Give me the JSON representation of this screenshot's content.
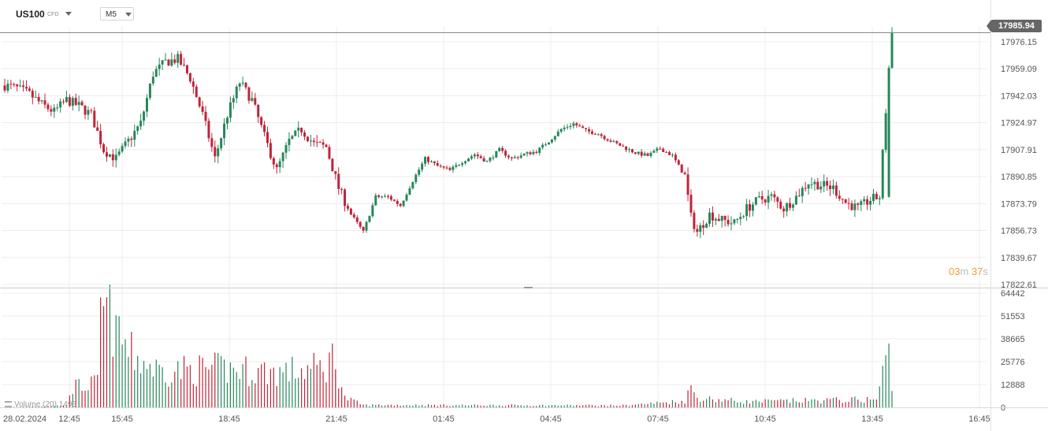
{
  "toolbar": {
    "symbol": "US100",
    "symbol_type": "CFD",
    "timeframe": "M5"
  },
  "current_price": "17985.94",
  "countdown": {
    "minutes": "03",
    "minutes_unit": "m",
    "seconds": "37",
    "seconds_unit": "s"
  },
  "volume_indicator_label": "Volume (20) 1493",
  "colors": {
    "up": "#26875a",
    "down": "#c0243a",
    "grid": "#ececec",
    "axis_text": "#555555",
    "price_tag": "#666666",
    "countdown": "#f0a030"
  },
  "chart_data": [
    {
      "type": "candlestick",
      "title": "",
      "ylim": [
        17812,
        17990
      ],
      "y_tick_labels": [
        "17976.15",
        "17959.09",
        "17942.03",
        "17924.97",
        "17907.91",
        "17890.85",
        "17873.79",
        "17856.73",
        "17839.67",
        "17822.61"
      ],
      "x_tick_labels": [
        "28.02.2024",
        "12:45",
        "15:45",
        "18:45",
        "21:45",
        "01:45",
        "04:45",
        "07:45",
        "10:45",
        "13:45",
        "16:45"
      ],
      "grid": true,
      "close_series": [
        {
          "i": 0,
          "y": 17950
        },
        {
          "i": 4,
          "y": 17948
        },
        {
          "i": 8,
          "y": 17944
        },
        {
          "i": 12,
          "y": 17937
        },
        {
          "i": 16,
          "y": 17932
        },
        {
          "i": 20,
          "y": 17940
        },
        {
          "i": 24,
          "y": 17936
        },
        {
          "i": 28,
          "y": 17930
        },
        {
          "i": 32,
          "y": 17906
        },
        {
          "i": 36,
          "y": 17900
        },
        {
          "i": 40,
          "y": 17912
        },
        {
          "i": 44,
          "y": 17924
        },
        {
          "i": 48,
          "y": 17958
        },
        {
          "i": 52,
          "y": 17966
        },
        {
          "i": 56,
          "y": 17968
        },
        {
          "i": 60,
          "y": 17955
        },
        {
          "i": 64,
          "y": 17930
        },
        {
          "i": 68,
          "y": 17900
        },
        {
          "i": 72,
          "y": 17930
        },
        {
          "i": 76,
          "y": 17952
        },
        {
          "i": 80,
          "y": 17940
        },
        {
          "i": 84,
          "y": 17915
        },
        {
          "i": 88,
          "y": 17892
        },
        {
          "i": 92,
          "y": 17912
        },
        {
          "i": 96,
          "y": 17920
        },
        {
          "i": 100,
          "y": 17910
        },
        {
          "i": 104,
          "y": 17908
        },
        {
          "i": 108,
          "y": 17880
        },
        {
          "i": 112,
          "y": 17862
        },
        {
          "i": 116,
          "y": 17850
        },
        {
          "i": 120,
          "y": 17874
        },
        {
          "i": 124,
          "y": 17874
        },
        {
          "i": 128,
          "y": 17868
        },
        {
          "i": 132,
          "y": 17885
        },
        {
          "i": 136,
          "y": 17900
        },
        {
          "i": 140,
          "y": 17895
        },
        {
          "i": 144,
          "y": 17892
        },
        {
          "i": 148,
          "y": 17898
        },
        {
          "i": 152,
          "y": 17903
        },
        {
          "i": 156,
          "y": 17898
        },
        {
          "i": 160,
          "y": 17906
        },
        {
          "i": 164,
          "y": 17900
        },
        {
          "i": 168,
          "y": 17903
        },
        {
          "i": 172,
          "y": 17905
        },
        {
          "i": 176,
          "y": 17912
        },
        {
          "i": 180,
          "y": 17920
        },
        {
          "i": 184,
          "y": 17924
        },
        {
          "i": 188,
          "y": 17919
        },
        {
          "i": 192,
          "y": 17917
        },
        {
          "i": 196,
          "y": 17912
        },
        {
          "i": 200,
          "y": 17908
        },
        {
          "i": 204,
          "y": 17904
        },
        {
          "i": 208,
          "y": 17902
        },
        {
          "i": 212,
          "y": 17907
        },
        {
          "i": 216,
          "y": 17902
        },
        {
          "i": 220,
          "y": 17888
        },
        {
          "i": 222,
          "y": 17860
        },
        {
          "i": 224,
          "y": 17850
        },
        {
          "i": 228,
          "y": 17862
        },
        {
          "i": 232,
          "y": 17858
        },
        {
          "i": 236,
          "y": 17856
        },
        {
          "i": 240,
          "y": 17866
        },
        {
          "i": 244,
          "y": 17872
        },
        {
          "i": 248,
          "y": 17874
        },
        {
          "i": 252,
          "y": 17866
        },
        {
          "i": 256,
          "y": 17874
        },
        {
          "i": 260,
          "y": 17884
        },
        {
          "i": 264,
          "y": 17882
        },
        {
          "i": 268,
          "y": 17880
        },
        {
          "i": 272,
          "y": 17870
        },
        {
          "i": 276,
          "y": 17866
        },
        {
          "i": 280,
          "y": 17872
        },
        {
          "i": 283,
          "y": 17874
        },
        {
          "i": 286,
          "y": 17962
        },
        {
          "i": 287,
          "y": 17985
        }
      ],
      "volume_ylim": [
        0,
        64442
      ],
      "volume_tick_labels": [
        "64442",
        "51553",
        "38665",
        "25776",
        "12888",
        "0"
      ],
      "volume_profile": [
        {
          "i": 0,
          "v": 0
        },
        {
          "i": 20,
          "v": 1200
        },
        {
          "i": 21,
          "v": 12000
        },
        {
          "i": 30,
          "v": 15000
        },
        {
          "i": 31,
          "v": 62000
        },
        {
          "i": 36,
          "v": 52000
        },
        {
          "i": 40,
          "v": 34000
        },
        {
          "i": 50,
          "v": 23000
        },
        {
          "i": 70,
          "v": 24000
        },
        {
          "i": 90,
          "v": 22000
        },
        {
          "i": 104,
          "v": 25000
        },
        {
          "i": 106,
          "v": 36000
        },
        {
          "i": 110,
          "v": 6000
        },
        {
          "i": 116,
          "v": 1500
        },
        {
          "i": 200,
          "v": 1200
        },
        {
          "i": 220,
          "v": 4000
        },
        {
          "i": 222,
          "v": 12500
        },
        {
          "i": 224,
          "v": 6000
        },
        {
          "i": 240,
          "v": 3500
        },
        {
          "i": 282,
          "v": 5000
        },
        {
          "i": 286,
          "v": 36000
        },
        {
          "i": 287,
          "v": 8000
        }
      ]
    }
  ]
}
